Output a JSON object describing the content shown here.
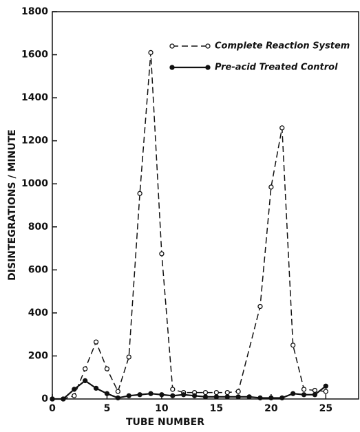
{
  "chart_data": {
    "type": "line",
    "xlabel": "TUBE NUMBER",
    "ylabel": "DISINTEGRATIONS / MINUTE",
    "xlim": [
      0,
      28
    ],
    "xticks": [
      0,
      5,
      10,
      15,
      20,
      25
    ],
    "ylim": [
      0,
      1800
    ],
    "yticks": [
      0,
      200,
      400,
      600,
      800,
      1000,
      1200,
      1400,
      1600,
      1800
    ],
    "legend": "upper right",
    "series": [
      {
        "name": "Complete Reaction System",
        "color": "#111111",
        "linestyle": "dashed",
        "marker": "open",
        "x": [
          0,
          1,
          2,
          3,
          4,
          5,
          6,
          7,
          8,
          9,
          10,
          11,
          12,
          13,
          14,
          15,
          16,
          17,
          19,
          20,
          21,
          22,
          23,
          24,
          25
        ],
        "values": [
          0,
          0,
          15,
          140,
          265,
          140,
          35,
          195,
          955,
          1610,
          675,
          45,
          30,
          30,
          30,
          30,
          30,
          35,
          430,
          985,
          1260,
          250,
          45,
          40,
          35
        ]
      },
      {
        "name": "Pre-acid Treated Control",
        "color": "#111111",
        "linestyle": "solid",
        "marker": "filled",
        "x": [
          0,
          1,
          2,
          3,
          4,
          5,
          6,
          7,
          8,
          9,
          10,
          11,
          12,
          13,
          14,
          15,
          16,
          17,
          18,
          19,
          20,
          21,
          22,
          23,
          24,
          25
        ],
        "values": [
          0,
          0,
          45,
          85,
          50,
          25,
          5,
          15,
          20,
          25,
          20,
          15,
          20,
          15,
          10,
          10,
          10,
          10,
          10,
          5,
          5,
          5,
          25,
          20,
          20,
          60
        ]
      }
    ]
  }
}
